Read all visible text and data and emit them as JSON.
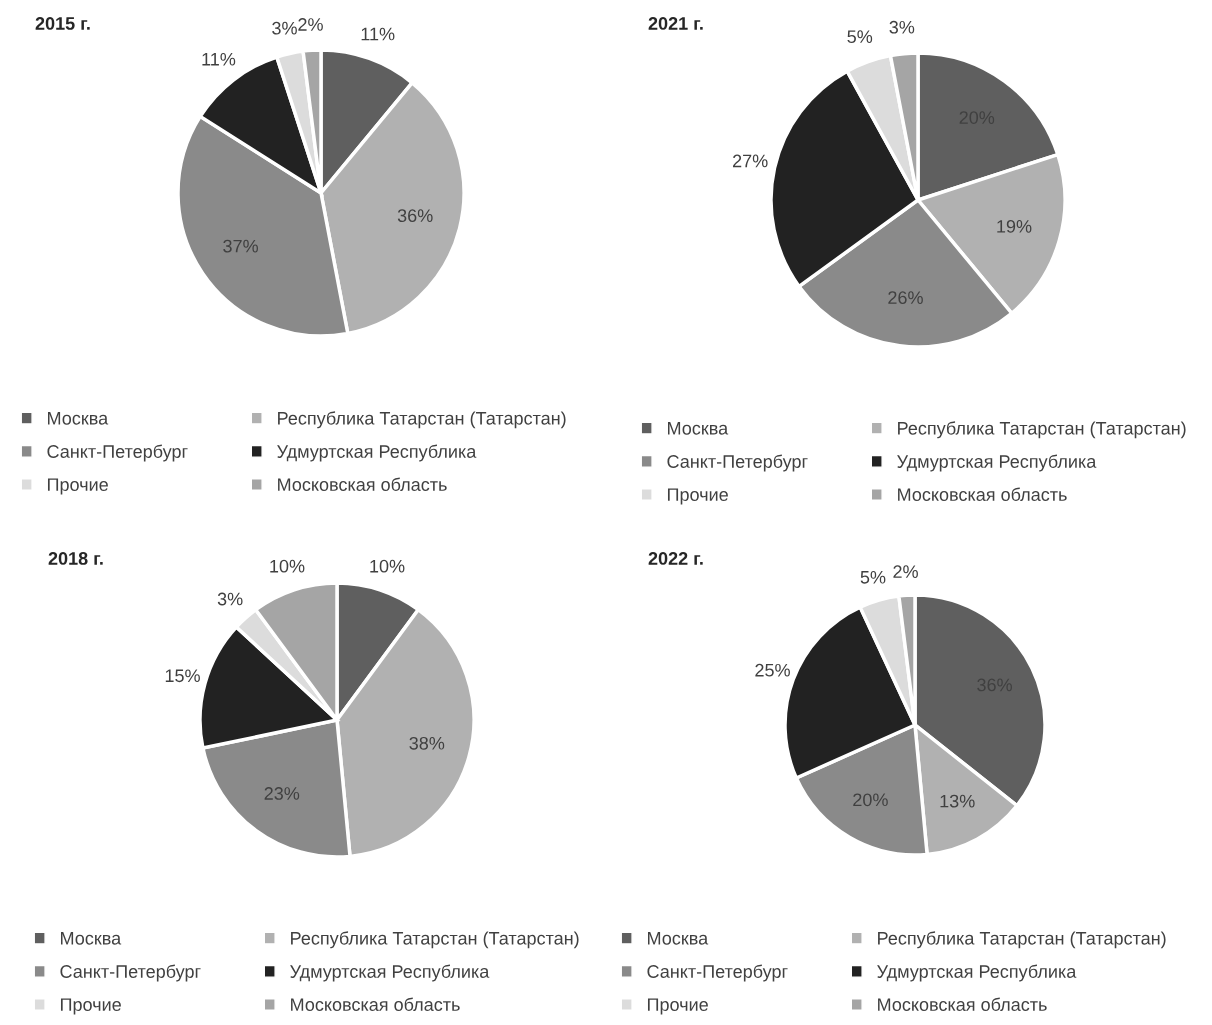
{
  "chart_data": [
    {
      "type": "pie",
      "title": "2015 г.",
      "categories": [
        "Москва",
        "Республика Татарстан (Татарстан)",
        "Санкт-Петербург",
        "Удмуртская Республика",
        "Прочие",
        "Московская область"
      ],
      "values": [
        11,
        36,
        37,
        11,
        3,
        2
      ],
      "value_labels": [
        "11%",
        "36%",
        "37%",
        "11%",
        "3%",
        "2%"
      ],
      "colors": [
        "#5f5f5f",
        "#b1b1b1",
        "#8a8a8a",
        "#222222",
        "#dcdcdc",
        "#a5a5a5"
      ],
      "legend": "bottom"
    },
    {
      "type": "pie",
      "title": "2021 г.",
      "categories": [
        "Москва",
        "Республика Татарстан (Татарстан)",
        "Санкт-Петербург",
        "Удмуртская Республика",
        "Прочие",
        "Московская область"
      ],
      "values": [
        20,
        19,
        26,
        27,
        5,
        3
      ],
      "value_labels": [
        "20%",
        "19%",
        "26%",
        "27%",
        "5%",
        "3%"
      ],
      "colors": [
        "#5f5f5f",
        "#b1b1b1",
        "#8a8a8a",
        "#222222",
        "#dcdcdc",
        "#a5a5a5"
      ],
      "legend": "bottom"
    },
    {
      "type": "pie",
      "title": "2018 г.",
      "categories": [
        "Москва",
        "Республика Татарстан (Татарстан)",
        "Санкт-Петербург",
        "Удмуртская Республика",
        "Прочие",
        "Московская область"
      ],
      "values": [
        10,
        38,
        23,
        15,
        3,
        10
      ],
      "value_labels": [
        "10%",
        "38%",
        "23%",
        "15%",
        "3%",
        "10%"
      ],
      "colors": [
        "#5f5f5f",
        "#b1b1b1",
        "#8a8a8a",
        "#222222",
        "#dcdcdc",
        "#a5a5a5"
      ],
      "legend": "bottom"
    },
    {
      "type": "pie",
      "title": "2022 г.",
      "categories": [
        "Москва",
        "Республика Татарстан (Татарстан)",
        "Санкт-Петербург",
        "Удмуртская Республика",
        "Прочие",
        "Московская область"
      ],
      "values": [
        36,
        13,
        20,
        25,
        5,
        2
      ],
      "value_labels": [
        "36%",
        "13%",
        "20%",
        "25%",
        "5%",
        "2%"
      ],
      "colors": [
        "#5f5f5f",
        "#b1b1b1",
        "#8a8a8a",
        "#222222",
        "#dcdcdc",
        "#a5a5a5"
      ],
      "legend": "bottom"
    }
  ]
}
